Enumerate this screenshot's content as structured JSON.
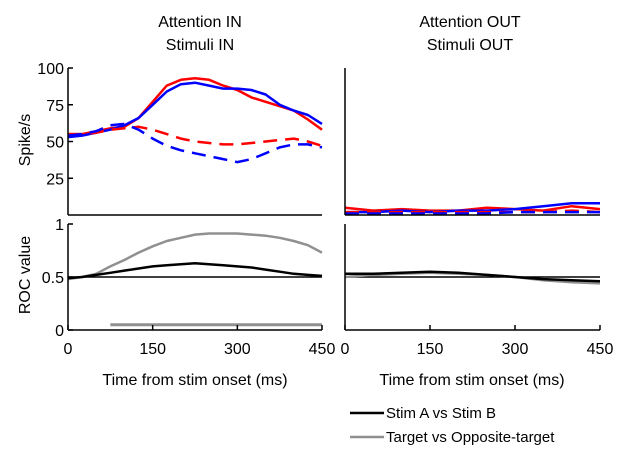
{
  "chart_data": [
    {
      "id": "rate_in",
      "type": "line",
      "title_lines": [
        "Attention IN",
        "Stimuli IN"
      ],
      "ylabel": "Spike/s",
      "xlim": [
        0,
        450
      ],
      "ylim": [
        0,
        100
      ],
      "yticks": [
        25,
        50,
        75,
        100
      ],
      "series": [
        {
          "color": "#ff0000",
          "dash": false,
          "x": [
            0,
            25,
            50,
            75,
            100,
            125,
            150,
            175,
            200,
            225,
            250,
            275,
            300,
            325,
            350,
            375,
            400,
            425,
            450
          ],
          "y": [
            55,
            55,
            57,
            59,
            60,
            66,
            77,
            88,
            92,
            93,
            92,
            88,
            85,
            80,
            77,
            74,
            71,
            65,
            58
          ]
        },
        {
          "color": "#0000ff",
          "dash": false,
          "x": [
            0,
            25,
            50,
            75,
            100,
            125,
            150,
            175,
            200,
            225,
            250,
            275,
            300,
            325,
            350,
            375,
            400,
            425,
            450
          ],
          "y": [
            53,
            54,
            56,
            58,
            61,
            66,
            75,
            84,
            89,
            90,
            88,
            86,
            86,
            85,
            82,
            75,
            71,
            68,
            62
          ]
        },
        {
          "color": "#ff0000",
          "dash": true,
          "x": [
            0,
            25,
            50,
            75,
            100,
            125,
            150,
            175,
            200,
            225,
            250,
            275,
            300,
            325,
            350,
            375,
            400,
            425,
            450
          ],
          "y": [
            55,
            55,
            56,
            58,
            59,
            60,
            58,
            55,
            52,
            50,
            49,
            48,
            48,
            49,
            50,
            51,
            52,
            50,
            47
          ]
        },
        {
          "color": "#0000ff",
          "dash": true,
          "x": [
            0,
            25,
            50,
            75,
            100,
            125,
            150,
            175,
            200,
            225,
            250,
            275,
            300,
            325,
            350,
            375,
            400,
            425,
            450
          ],
          "y": [
            54,
            55,
            57,
            61,
            62,
            58,
            52,
            47,
            44,
            42,
            40,
            38,
            36,
            38,
            42,
            46,
            48,
            48,
            46
          ]
        }
      ]
    },
    {
      "id": "rate_out",
      "type": "line",
      "title_lines": [
        "Attention OUT",
        "Stimuli OUT"
      ],
      "xlim": [
        0,
        450
      ],
      "ylim": [
        0,
        100
      ],
      "series": [
        {
          "color": "#ff0000",
          "dash": false,
          "x": [
            0,
            50,
            100,
            150,
            200,
            250,
            300,
            350,
            400,
            450
          ],
          "y": [
            5,
            3,
            4,
            3,
            3,
            5,
            4,
            3,
            6,
            4
          ]
        },
        {
          "color": "#0000ff",
          "dash": false,
          "x": [
            0,
            50,
            100,
            150,
            200,
            250,
            300,
            350,
            400,
            450
          ],
          "y": [
            2,
            2,
            3,
            2,
            3,
            3,
            4,
            6,
            8,
            8
          ]
        },
        {
          "color": "#ff0000",
          "dash": true,
          "x": [
            0,
            50,
            100,
            150,
            200,
            250,
            300,
            350,
            400,
            450
          ],
          "y": [
            2,
            2,
            2,
            2,
            2,
            2,
            2,
            2,
            3,
            2
          ]
        },
        {
          "color": "#0000ff",
          "dash": true,
          "x": [
            0,
            50,
            100,
            150,
            200,
            250,
            300,
            350,
            400,
            450
          ],
          "y": [
            1,
            1,
            1,
            1,
            1,
            1,
            2,
            2,
            2,
            2
          ]
        }
      ]
    },
    {
      "id": "roc_in",
      "type": "line",
      "ylabel": "ROC value",
      "xlabel": "Time from stim onset (ms)",
      "xlim": [
        0,
        450
      ],
      "ylim": [
        0,
        1
      ],
      "yticks": [
        0,
        0.5,
        1
      ],
      "ytick_labels": [
        "0",
        "0.5",
        "1"
      ],
      "xticks": [
        0,
        150,
        300,
        450
      ],
      "reference_line": 0.5,
      "significance_bar": {
        "x0": 75,
        "x1": 450,
        "y": 0.05,
        "color": "#909090"
      },
      "series": [
        {
          "color": "#909090",
          "dash": false,
          "x": [
            0,
            25,
            50,
            75,
            100,
            125,
            150,
            175,
            200,
            225,
            250,
            275,
            300,
            325,
            350,
            375,
            400,
            425,
            450
          ],
          "y": [
            0.48,
            0.5,
            0.53,
            0.6,
            0.66,
            0.73,
            0.79,
            0.84,
            0.87,
            0.9,
            0.91,
            0.91,
            0.91,
            0.9,
            0.89,
            0.87,
            0.84,
            0.8,
            0.73
          ]
        },
        {
          "color": "#000000",
          "dash": false,
          "x": [
            0,
            25,
            50,
            75,
            100,
            125,
            150,
            175,
            200,
            225,
            250,
            275,
            300,
            325,
            350,
            375,
            400,
            425,
            450
          ],
          "y": [
            0.49,
            0.5,
            0.52,
            0.54,
            0.56,
            0.58,
            0.6,
            0.61,
            0.62,
            0.63,
            0.62,
            0.61,
            0.6,
            0.59,
            0.57,
            0.55,
            0.53,
            0.52,
            0.51
          ]
        }
      ]
    },
    {
      "id": "roc_out",
      "type": "line",
      "xlabel": "Time from stim onset (ms)",
      "xlim": [
        0,
        450
      ],
      "ylim": [
        0,
        1
      ],
      "xticks": [
        0,
        150,
        300,
        450
      ],
      "reference_line": 0.5,
      "series": [
        {
          "color": "#909090",
          "dash": false,
          "x": [
            0,
            50,
            100,
            150,
            200,
            250,
            300,
            350,
            400,
            450
          ],
          "y": [
            0.5,
            0.52,
            0.53,
            0.54,
            0.53,
            0.52,
            0.5,
            0.47,
            0.45,
            0.44
          ]
        },
        {
          "color": "#000000",
          "dash": false,
          "x": [
            0,
            50,
            100,
            150,
            200,
            250,
            300,
            350,
            400,
            450
          ],
          "y": [
            0.53,
            0.53,
            0.54,
            0.55,
            0.54,
            0.52,
            0.5,
            0.48,
            0.47,
            0.46
          ]
        }
      ]
    }
  ],
  "legend": {
    "placement": "bottom-right",
    "entries": [
      {
        "label": "Stim A vs Stim B",
        "color": "#000000"
      },
      {
        "label": "Target vs Opposite-target",
        "color": "#909090"
      }
    ]
  }
}
